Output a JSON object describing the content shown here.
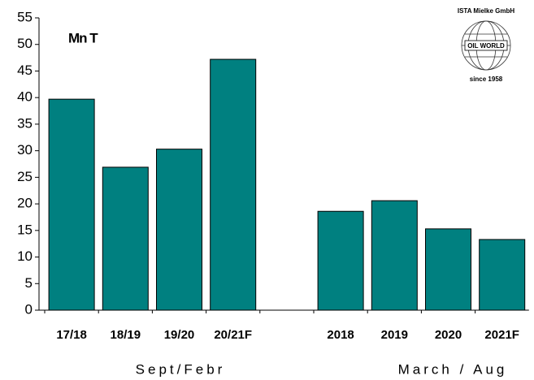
{
  "chart_data": {
    "type": "bar",
    "annotation": "Mn T",
    "group_labels": [
      "Sept/Febr",
      "March / Aug"
    ],
    "logo": {
      "top": "ISTA Mielke GmbH",
      "middle": "OIL WORLD",
      "bottom": "since 1958"
    },
    "categories": [
      "17/18",
      "18/19",
      "19/20",
      "20/21F",
      null,
      "2018",
      "2019",
      "2020",
      "2021F"
    ],
    "values": [
      39.7,
      26.9,
      30.3,
      47.2,
      null,
      18.6,
      20.6,
      15.3,
      13.3
    ],
    "color": "#008080",
    "ylim": [
      0,
      55
    ],
    "yticks": [
      0,
      5,
      10,
      15,
      20,
      25,
      30,
      35,
      40,
      45,
      50,
      55
    ],
    "grid": false
  }
}
